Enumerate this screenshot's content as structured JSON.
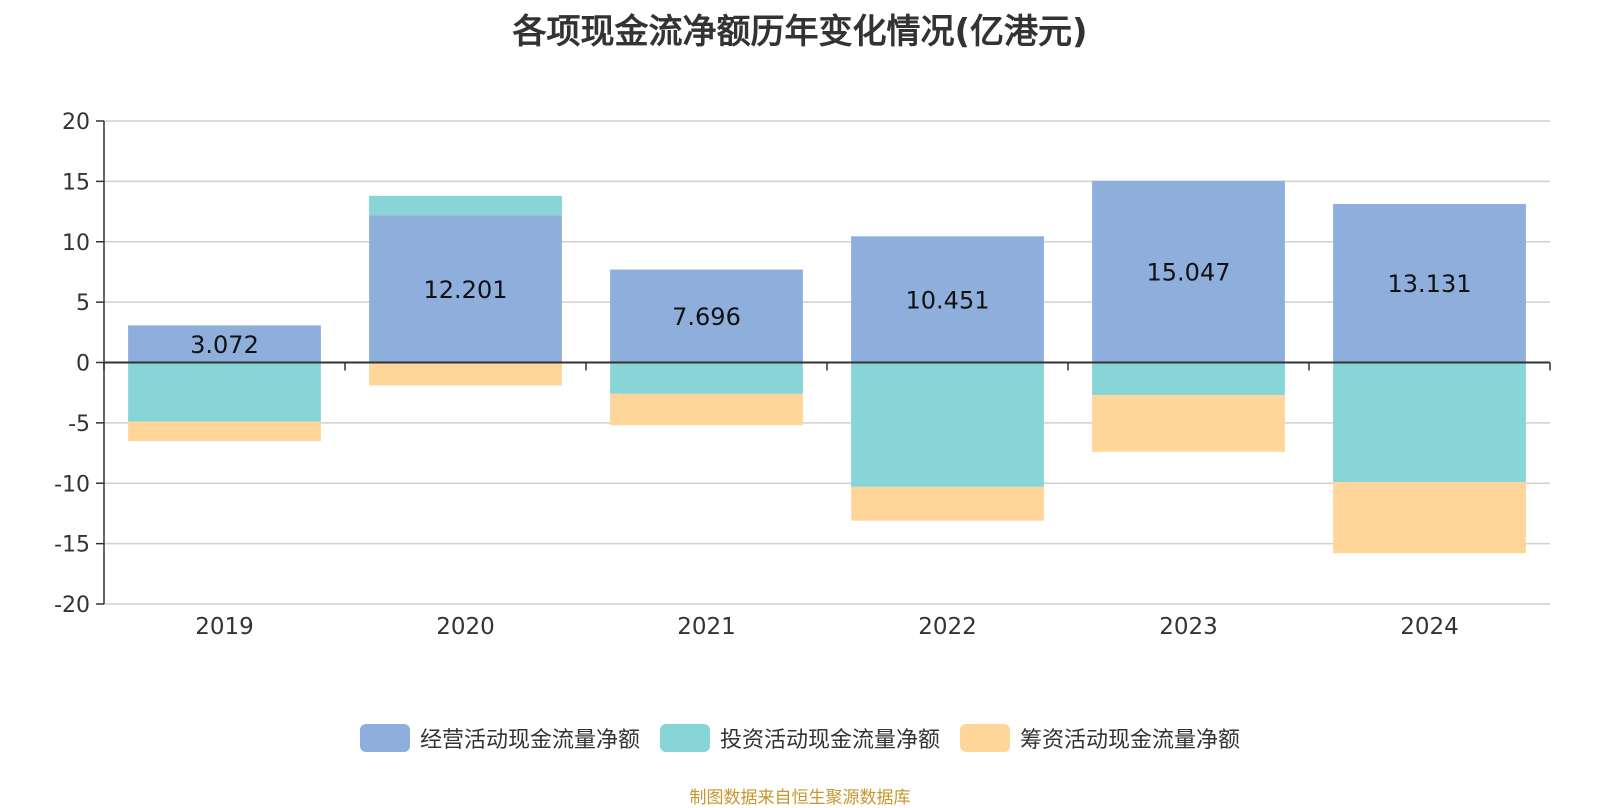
{
  "chart_data": {
    "type": "bar",
    "stacked": true,
    "title": "各项现金流净额历年变化情况(亿港元)",
    "categories": [
      "2019",
      "2020",
      "2021",
      "2022",
      "2023",
      "2024"
    ],
    "ylim": [
      -20,
      20
    ],
    "yticks": [
      20,
      15,
      10,
      5,
      0,
      -5,
      -10,
      -15,
      -20
    ],
    "grid": true,
    "legend_position": "bottom",
    "series": [
      {
        "name": "经营活动现金流量净额",
        "color": "#8eaedb",
        "values": [
          3.072,
          12.201,
          7.696,
          10.451,
          15.047,
          13.131
        ]
      },
      {
        "name": "投资活动现金流量净额",
        "color": "#88d5d8",
        "values": [
          -4.9,
          1.6,
          -2.6,
          -10.3,
          -2.7,
          -9.9
        ]
      },
      {
        "name": "筹资活动现金流量净额",
        "color": "#ffd699",
        "values": [
          -1.6,
          -1.9,
          -2.6,
          -2.8,
          -4.7,
          -5.9
        ]
      }
    ],
    "data_labels": [
      "3.072",
      "12.201",
      "7.696",
      "10.451",
      "15.047",
      "13.131"
    ]
  },
  "footer": "制图数据来自恒生聚源数据库"
}
